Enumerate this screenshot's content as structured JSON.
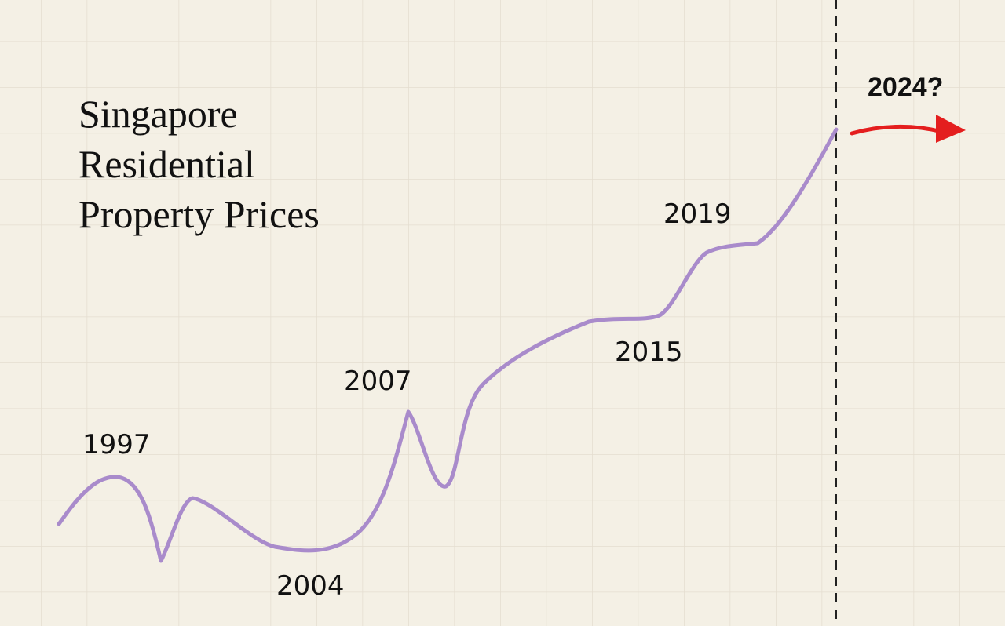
{
  "title": {
    "lines": [
      "Singapore",
      "Residential",
      "Property Prices"
    ]
  },
  "labels": [
    "1997",
    "2004",
    "2007",
    "2015",
    "2019"
  ],
  "forecast_label": "2024?"
}
